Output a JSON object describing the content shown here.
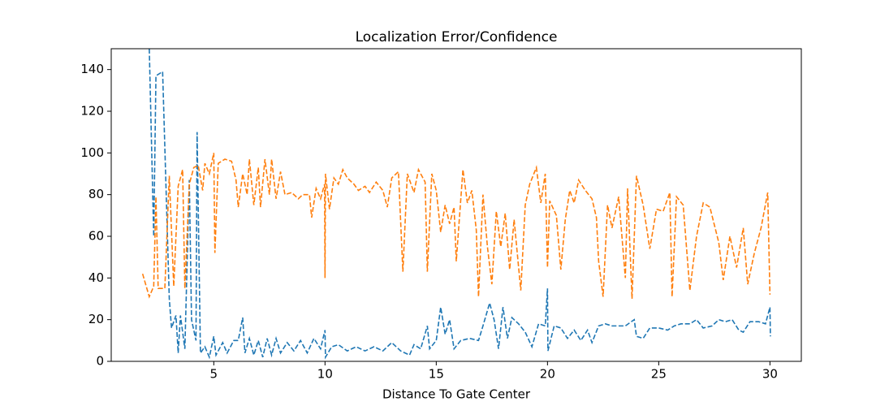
{
  "chart_data": {
    "type": "line",
    "title": "Localization Error/Confidence",
    "x_label": "Distance To Gate Center",
    "xlim": [
      0.39,
      31.41
    ],
    "xticks": [
      5,
      10,
      15,
      20,
      25,
      30
    ],
    "ylim": [
      0,
      150
    ],
    "yticks": [
      0,
      20,
      40,
      60,
      80,
      100,
      120,
      140
    ],
    "line_style": "dashed",
    "series": [
      {
        "color": "#1f77b4",
        "x": [
          2.1,
          2.3,
          2.4,
          2.7,
          3.0,
          3.1,
          3.3,
          3.4,
          3.5,
          3.7,
          3.9,
          4.0,
          4.2,
          4.25,
          4.4,
          4.6,
          4.8,
          5.0,
          5.1,
          5.4,
          5.6,
          5.9,
          6.1,
          6.3,
          6.4,
          6.6,
          6.8,
          7.0,
          7.2,
          7.4,
          7.6,
          7.8,
          8.0,
          8.3,
          8.6,
          8.9,
          9.2,
          9.5,
          9.8,
          10.0,
          10.02,
          10.3,
          10.6,
          11.0,
          11.4,
          11.8,
          12.2,
          12.6,
          13.0,
          13.4,
          13.8,
          14.0,
          14.3,
          14.6,
          14.7,
          15.0,
          15.2,
          15.4,
          15.6,
          15.8,
          16.1,
          16.5,
          16.9,
          17.1,
          17.4,
          17.6,
          17.8,
          18.0,
          18.2,
          18.4,
          18.7,
          19.0,
          19.3,
          19.6,
          19.9,
          20.0,
          20.02,
          20.3,
          20.6,
          20.9,
          21.2,
          21.5,
          21.8,
          22.0,
          22.3,
          22.6,
          22.9,
          23.2,
          23.5,
          23.9,
          24.0,
          24.3,
          24.6,
          25.0,
          25.4,
          25.7,
          26.0,
          26.4,
          26.7,
          27.0,
          27.4,
          27.7,
          28.0,
          28.3,
          28.6,
          28.8,
          29.1,
          29.5,
          29.8,
          30.0,
          30.02
        ],
        "values": [
          150,
          60,
          137,
          139,
          30,
          16,
          22,
          4,
          22,
          6,
          87,
          20,
          10,
          110,
          4,
          7,
          2,
          12,
          3,
          9,
          4,
          10,
          10,
          21,
          4,
          11,
          3,
          10,
          2,
          11,
          3,
          11,
          4,
          9,
          5,
          10,
          4,
          11,
          6,
          15,
          2,
          7,
          8,
          5,
          7,
          5,
          7,
          5,
          9,
          5,
          3,
          8,
          6,
          17,
          6,
          10,
          26,
          13,
          20,
          6,
          10,
          11,
          10,
          17,
          28,
          20,
          6,
          26,
          11,
          21,
          18,
          14,
          7,
          18,
          17,
          35,
          5,
          17,
          16,
          11,
          15,
          10,
          15,
          9,
          17,
          18,
          17,
          17,
          17,
          20,
          12,
          11,
          16,
          16,
          15,
          17,
          18,
          18,
          20,
          16,
          17,
          20,
          19,
          20,
          15,
          14,
          19,
          19,
          18,
          26,
          12
        ]
      },
      {
        "color": "#ff7f0e",
        "x": [
          1.8,
          2.1,
          2.3,
          2.4,
          2.5,
          2.8,
          3.0,
          3.2,
          3.4,
          3.6,
          3.7,
          3.9,
          4.1,
          4.3,
          4.5,
          4.6,
          4.8,
          5.0,
          5.05,
          5.2,
          5.5,
          5.8,
          6.0,
          6.1,
          6.3,
          6.5,
          6.6,
          6.8,
          7.0,
          7.1,
          7.3,
          7.5,
          7.6,
          7.8,
          8.0,
          8.2,
          8.5,
          8.8,
          9.0,
          9.3,
          9.4,
          9.6,
          9.8,
          9.98,
          10.0,
          10.02,
          10.2,
          10.4,
          10.6,
          10.8,
          11.0,
          11.3,
          11.5,
          11.8,
          12.0,
          12.3,
          12.6,
          12.8,
          13.0,
          13.3,
          13.5,
          13.7,
          14.0,
          14.2,
          14.5,
          14.6,
          14.8,
          15.0,
          15.2,
          15.4,
          15.6,
          15.8,
          15.9,
          16.2,
          16.4,
          16.6,
          16.8,
          16.9,
          17.1,
          17.3,
          17.5,
          17.7,
          17.9,
          18.1,
          18.3,
          18.5,
          18.8,
          19.0,
          19.2,
          19.5,
          19.7,
          19.9,
          20.0,
          20.1,
          20.4,
          20.6,
          20.8,
          21.0,
          21.2,
          21.4,
          21.7,
          22.0,
          22.2,
          22.3,
          22.5,
          22.7,
          22.9,
          23.2,
          23.5,
          23.6,
          23.8,
          24.0,
          24.3,
          24.6,
          24.9,
          25.2,
          25.5,
          25.6,
          25.8,
          26.1,
          26.4,
          26.7,
          27.0,
          27.3,
          27.7,
          27.9,
          28.2,
          28.5,
          28.8,
          29.0,
          29.3,
          29.6,
          29.9,
          30.0
        ],
        "values": [
          42,
          31,
          36,
          79,
          35,
          35,
          89,
          36,
          84,
          92,
          35,
          85,
          93,
          94,
          82,
          95,
          90,
          100,
          52,
          95,
          97,
          96,
          87,
          74,
          90,
          80,
          97,
          75,
          93,
          74,
          97,
          80,
          97,
          78,
          91,
          80,
          81,
          78,
          80,
          80,
          69,
          83,
          78,
          85,
          40,
          90,
          73,
          88,
          85,
          92,
          88,
          85,
          82,
          84,
          81,
          86,
          82,
          74,
          88,
          91,
          43,
          90,
          81,
          92,
          86,
          43,
          90,
          82,
          62,
          75,
          66,
          74,
          48,
          92,
          76,
          82,
          63,
          31,
          80,
          55,
          37,
          72,
          55,
          71,
          44,
          68,
          34,
          75,
          85,
          93,
          76,
          90,
          45,
          77,
          70,
          44,
          68,
          82,
          76,
          87,
          82,
          78,
          69,
          48,
          31,
          75,
          64,
          79,
          40,
          83,
          30,
          89,
          75,
          54,
          73,
          72,
          81,
          31,
          79,
          75,
          34,
          60,
          76,
          74,
          57,
          39,
          60,
          45,
          64,
          37,
          52,
          64,
          81,
          32
        ]
      }
    ]
  }
}
